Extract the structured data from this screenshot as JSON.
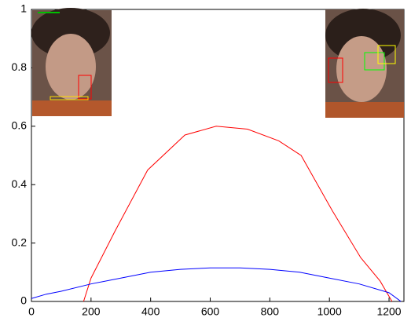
{
  "chart_data": {
    "type": "line",
    "xlim": [
      0,
      1250
    ],
    "ylim": [
      0,
      1
    ],
    "xticks": [
      0,
      200,
      400,
      600,
      800,
      1000,
      1200
    ],
    "yticks": [
      0,
      0.2,
      0.4,
      0.6,
      0.8,
      1
    ],
    "series": [
      {
        "color": "#ff0000",
        "x": [
          175,
          200,
          280,
          390,
          515,
          620,
          725,
          830,
          905,
          1010,
          1105,
          1170,
          1210
        ],
        "values": [
          0,
          0.08,
          0.24,
          0.45,
          0.57,
          0.6,
          0.59,
          0.55,
          0.5,
          0.31,
          0.15,
          0.07,
          0
        ]
      },
      {
        "color": "#0000ff",
        "x": [
          0,
          50,
          100,
          200,
          300,
          400,
          500,
          600,
          700,
          800,
          900,
          1000,
          1100,
          1200,
          1240
        ],
        "values": [
          0.01,
          0.025,
          0.035,
          0.06,
          0.08,
          0.1,
          0.11,
          0.115,
          0.115,
          0.11,
          0.1,
          0.08,
          0.06,
          0.03,
          0.0
        ]
      }
    ]
  }
}
